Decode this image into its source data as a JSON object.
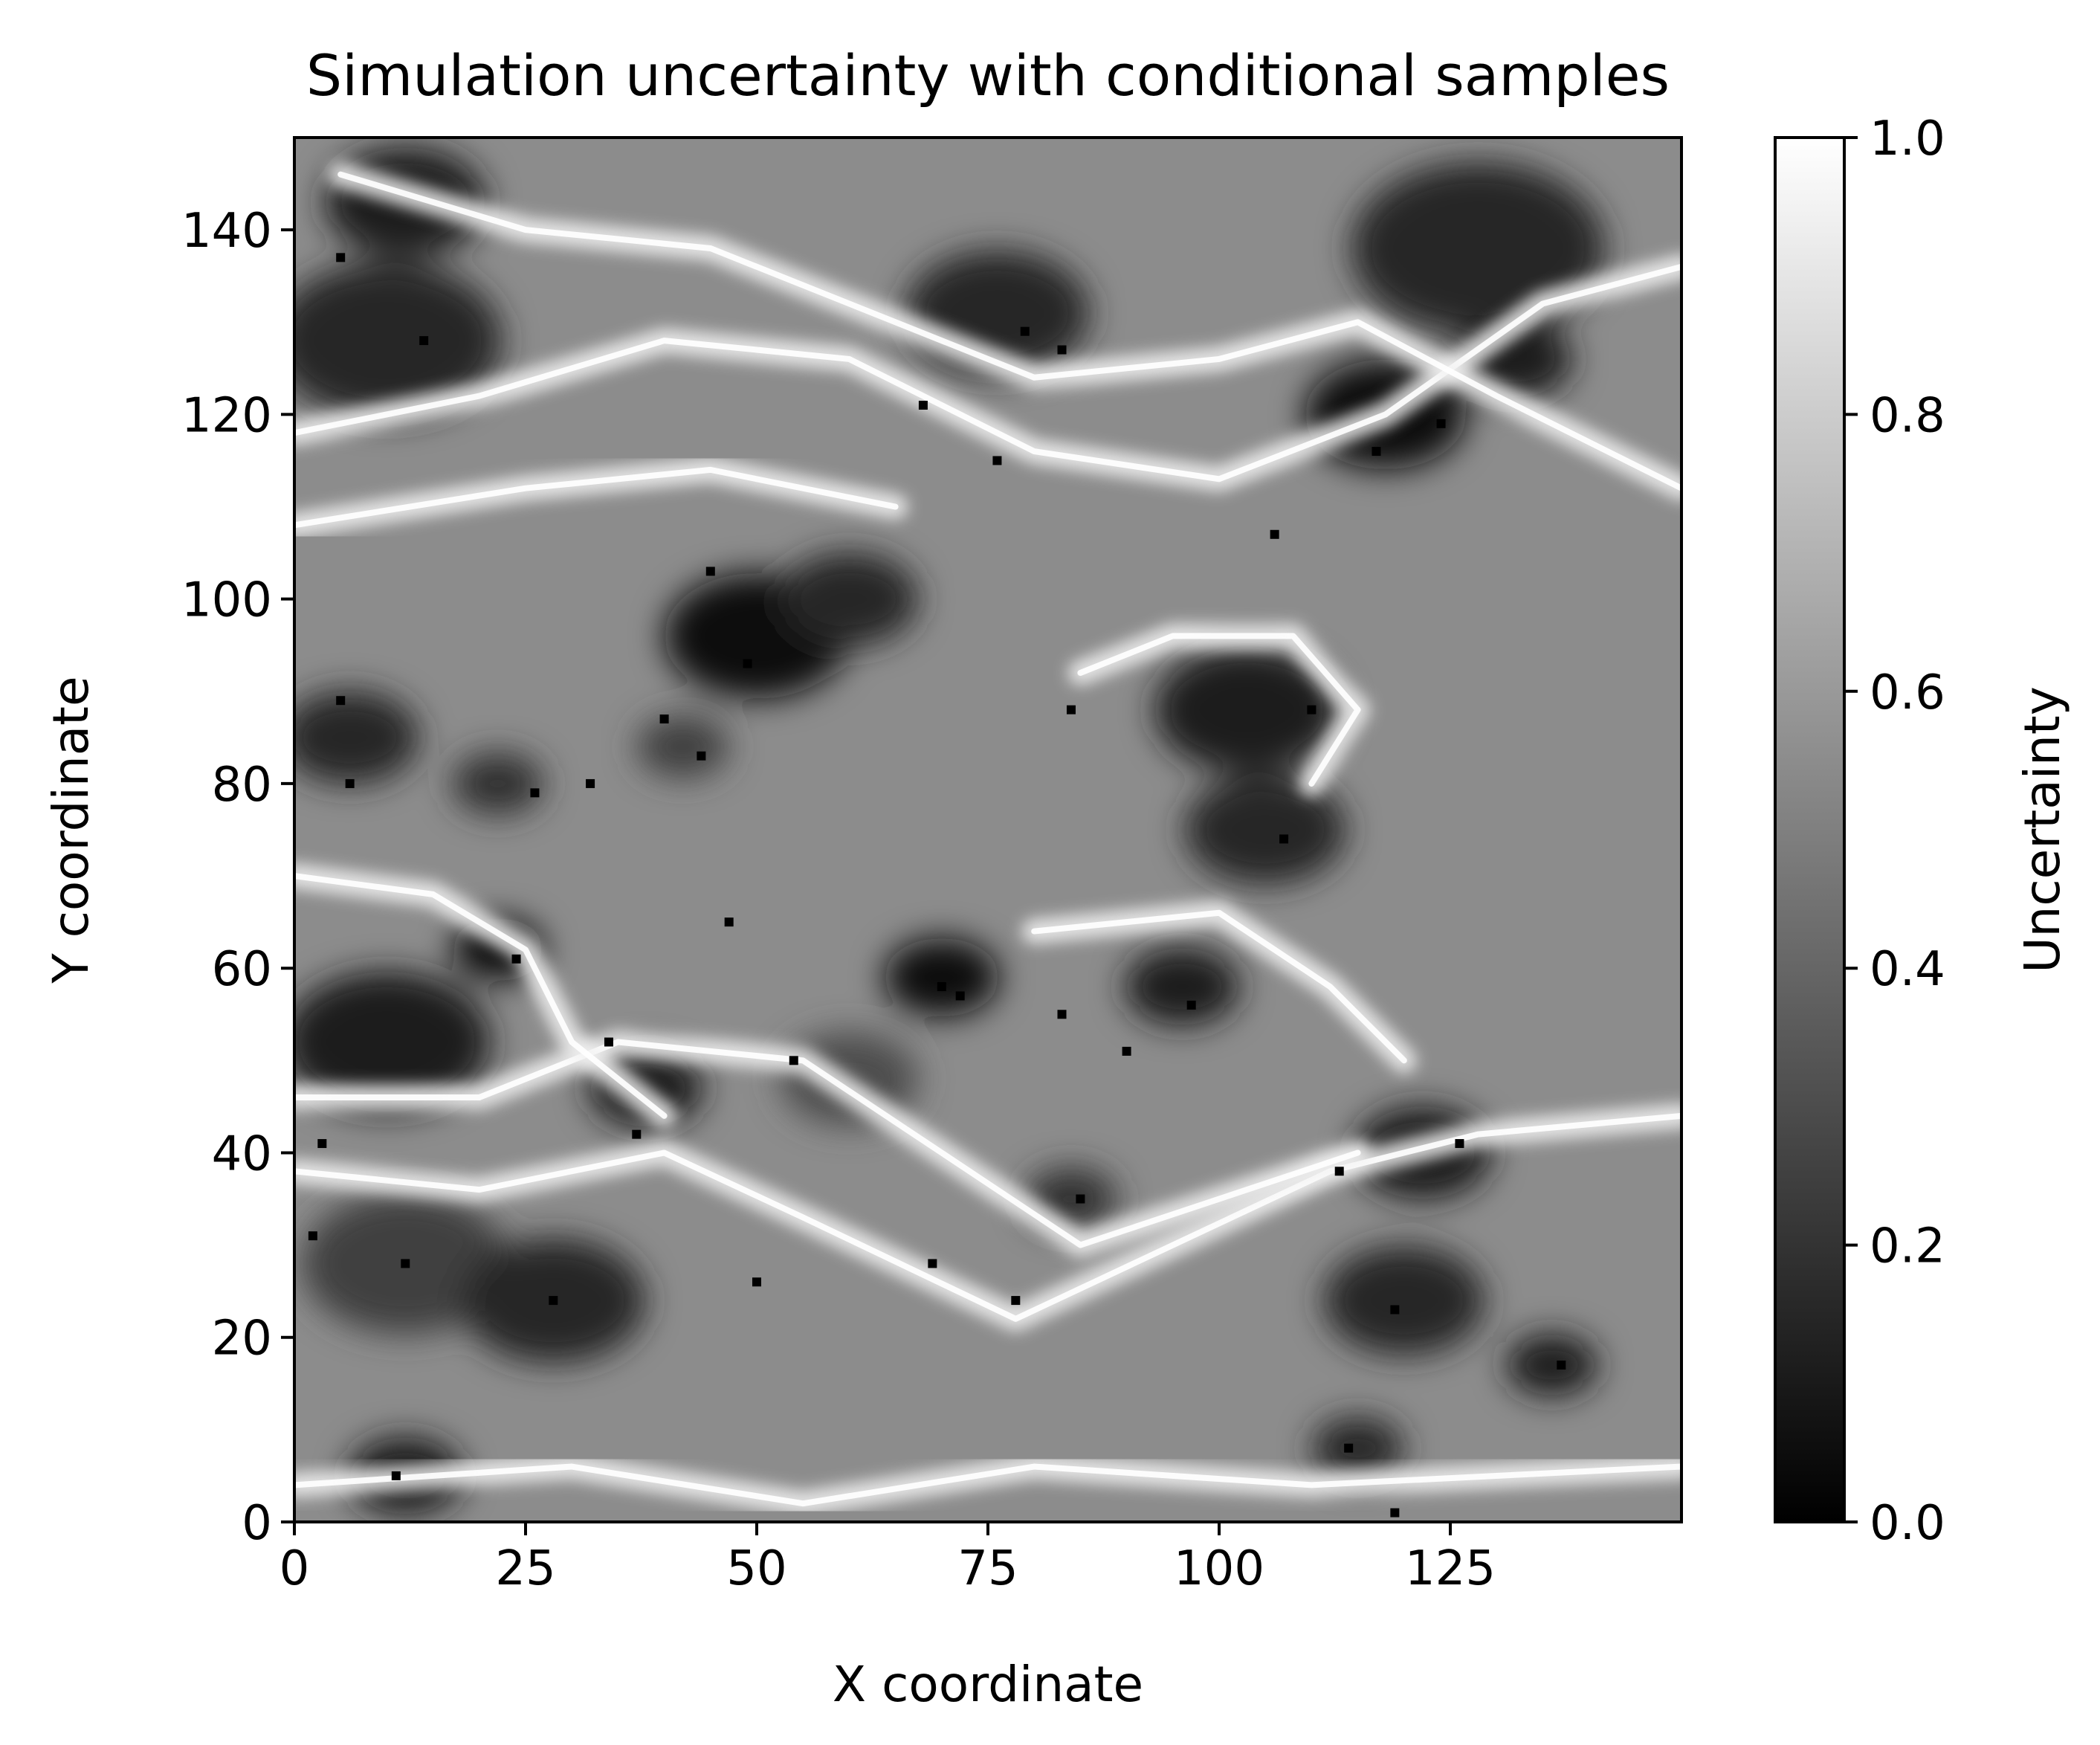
{
  "chart_data": {
    "type": "heatmap",
    "title": "Simulation uncertainty with conditional samples",
    "xlabel": "X coordinate",
    "ylabel": "Y coordinate",
    "xlim": [
      0,
      150
    ],
    "ylim": [
      0,
      150
    ],
    "xticks": [
      0,
      25,
      50,
      75,
      100,
      125
    ],
    "yticks": [
      0,
      20,
      40,
      60,
      80,
      100,
      120,
      140
    ],
    "xtick_labels": [
      "0",
      "25",
      "50",
      "75",
      "100",
      "125"
    ],
    "ytick_labels": [
      "0",
      "20",
      "40",
      "60",
      "80",
      "100",
      "120",
      "140"
    ],
    "colormap": "gray",
    "colormap_colors": [
      "#000000",
      "#ffffff"
    ],
    "grid": false,
    "colorbar": {
      "label": "Uncertainty",
      "range": [
        0.0,
        1.0
      ],
      "ticks": [
        0.0,
        0.2,
        0.4,
        0.6,
        0.8,
        1.0
      ],
      "tick_labels": [
        "0.0",
        "0.2",
        "0.4",
        "0.6",
        "0.8",
        "1.0"
      ]
    },
    "low_uncertainty_regions": [
      {
        "x": 12,
        "y": 143,
        "r": 7,
        "value": 0.1
      },
      {
        "x": 10,
        "y": 128,
        "r": 10,
        "value": 0.15
      },
      {
        "x": 76,
        "y": 131,
        "r": 8,
        "value": 0.15
      },
      {
        "x": 128,
        "y": 138,
        "r": 11,
        "value": 0.15
      },
      {
        "x": 118,
        "y": 120,
        "r": 7,
        "value": 0.05
      },
      {
        "x": 132,
        "y": 126,
        "r": 5,
        "value": 0.1
      },
      {
        "x": 50,
        "y": 96,
        "r": 8,
        "value": 0.05
      },
      {
        "x": 60,
        "y": 100,
        "r": 6,
        "value": 0.15
      },
      {
        "x": 103,
        "y": 88,
        "r": 8,
        "value": 0.1
      },
      {
        "x": 105,
        "y": 75,
        "r": 7,
        "value": 0.15
      },
      {
        "x": 6,
        "y": 85,
        "r": 6,
        "value": 0.15
      },
      {
        "x": 22,
        "y": 80,
        "r": 4,
        "value": 0.2
      },
      {
        "x": 42,
        "y": 84,
        "r": 4,
        "value": 0.25
      },
      {
        "x": 22,
        "y": 62,
        "r": 4,
        "value": 0.05
      },
      {
        "x": 10,
        "y": 52,
        "r": 9,
        "value": 0.1
      },
      {
        "x": 38,
        "y": 47,
        "r": 5,
        "value": 0.1
      },
      {
        "x": 70,
        "y": 59,
        "r": 5,
        "value": 0.05
      },
      {
        "x": 96,
        "y": 58,
        "r": 5,
        "value": 0.1
      },
      {
        "x": 60,
        "y": 48,
        "r": 6,
        "value": 0.3
      },
      {
        "x": 84,
        "y": 35,
        "r": 4,
        "value": 0.2
      },
      {
        "x": 12,
        "y": 28,
        "r": 9,
        "value": 0.25
      },
      {
        "x": 28,
        "y": 24,
        "r": 8,
        "value": 0.15
      },
      {
        "x": 122,
        "y": 40,
        "r": 6,
        "value": 0.1
      },
      {
        "x": 120,
        "y": 24,
        "r": 7,
        "value": 0.15
      },
      {
        "x": 136,
        "y": 17,
        "r": 4,
        "value": 0.1
      },
      {
        "x": 12,
        "y": 5,
        "r": 5,
        "value": 0.1
      },
      {
        "x": 115,
        "y": 8,
        "r": 4,
        "value": 0.15
      }
    ],
    "high_uncertainty_ridges": [
      [
        [
          0,
          38
        ],
        [
          20,
          36
        ],
        [
          40,
          40
        ],
        [
          55,
          33
        ],
        [
          78,
          22
        ],
        [
          95,
          30
        ],
        [
          112,
          38
        ],
        [
          128,
          42
        ],
        [
          150,
          44
        ]
      ],
      [
        [
          0,
          46
        ],
        [
          20,
          46
        ],
        [
          35,
          52
        ],
        [
          55,
          50
        ],
        [
          70,
          40
        ],
        [
          85,
          30
        ],
        [
          100,
          35
        ],
        [
          115,
          40
        ]
      ],
      [
        [
          0,
          118
        ],
        [
          20,
          122
        ],
        [
          40,
          128
        ],
        [
          60,
          126
        ],
        [
          80,
          116
        ],
        [
          100,
          113
        ],
        [
          118,
          120
        ],
        [
          135,
          132
        ],
        [
          150,
          136
        ]
      ],
      [
        [
          0,
          108
        ],
        [
          25,
          112
        ],
        [
          45,
          114
        ],
        [
          65,
          110
        ]
      ],
      [
        [
          0,
          70
        ],
        [
          15,
          68
        ],
        [
          25,
          62
        ],
        [
          30,
          52
        ],
        [
          40,
          44
        ]
      ],
      [
        [
          5,
          146
        ],
        [
          25,
          140
        ],
        [
          45,
          138
        ],
        [
          60,
          132
        ],
        [
          80,
          124
        ],
        [
          100,
          126
        ],
        [
          115,
          130
        ],
        [
          130,
          122
        ],
        [
          150,
          112
        ]
      ],
      [
        [
          85,
          92
        ],
        [
          95,
          96
        ],
        [
          108,
          96
        ],
        [
          115,
          88
        ],
        [
          110,
          80
        ]
      ],
      [
        [
          0,
          4
        ],
        [
          30,
          6
        ],
        [
          55,
          2
        ],
        [
          80,
          6
        ],
        [
          110,
          4
        ],
        [
          150,
          6
        ]
      ],
      [
        [
          80,
          64
        ],
        [
          100,
          66
        ],
        [
          112,
          58
        ],
        [
          120,
          50
        ]
      ]
    ],
    "conditional_samples": [
      [
        5,
        137
      ],
      [
        14,
        128
      ],
      [
        68,
        121
      ],
      [
        76,
        115
      ],
      [
        79,
        129
      ],
      [
        83,
        127
      ],
      [
        117,
        116
      ],
      [
        124,
        119
      ],
      [
        45,
        103
      ],
      [
        106,
        107
      ],
      [
        49,
        93
      ],
      [
        5,
        89
      ],
      [
        110,
        88
      ],
      [
        84,
        88
      ],
      [
        40,
        87
      ],
      [
        44,
        83
      ],
      [
        6,
        80
      ],
      [
        32,
        80
      ],
      [
        26,
        79
      ],
      [
        107,
        74
      ],
      [
        24,
        61
      ],
      [
        47,
        65
      ],
      [
        72,
        57
      ],
      [
        83,
        55
      ],
      [
        90,
        51
      ],
      [
        70,
        58
      ],
      [
        97,
        56
      ],
      [
        54,
        50
      ],
      [
        34,
        52
      ],
      [
        37,
        42
      ],
      [
        3,
        41
      ],
      [
        85,
        35
      ],
      [
        69,
        28
      ],
      [
        78,
        24
      ],
      [
        113,
        38
      ],
      [
        126,
        41
      ],
      [
        12,
        28
      ],
      [
        28,
        24
      ],
      [
        50,
        26
      ],
      [
        119,
        23
      ],
      [
        137,
        17
      ],
      [
        11,
        5
      ],
      [
        114,
        8
      ],
      [
        119,
        1
      ],
      [
        2,
        31
      ]
    ]
  }
}
